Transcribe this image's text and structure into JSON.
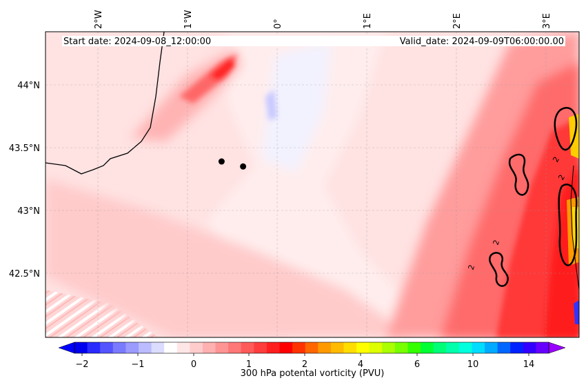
{
  "map": {
    "start_date": "Start date: 2024-09-08_12:00:00",
    "valid_date": "Valid_date: 2024-09-09T06:00:00.00",
    "longitude_labels": [
      "2°W",
      "1°W",
      "0°",
      "1°E",
      "2°E",
      "3°E"
    ],
    "latitude_labels": [
      "44°N",
      "43.5°N",
      "43°N",
      "42.5°N"
    ],
    "gridlines": true,
    "contour_label": "2",
    "markers": [
      {
        "name": "point-1",
        "lon": -0.62,
        "lat": 43.39
      },
      {
        "name": "point-2",
        "lon": -0.38,
        "lat": 43.35
      }
    ]
  },
  "colorbar": {
    "label": "300 hPa potental vorticity (PVU)",
    "tick_labels": [
      "−2",
      "−1",
      "0",
      "1",
      "2",
      "4",
      "6",
      "10",
      "14"
    ],
    "colors": [
      "#0000ee",
      "#2a2aff",
      "#5555ff",
      "#7a7aff",
      "#9a9aff",
      "#bbbbff",
      "#dcdcff",
      "#ffffff",
      "#ffe6e6",
      "#ffcccc",
      "#ffb0b0",
      "#ff9494",
      "#ff7777",
      "#ff5a5a",
      "#ff3c3c",
      "#ff1e1e",
      "#ff0000",
      "#ff3300",
      "#ff6600",
      "#ff9900",
      "#ffbb00",
      "#ffdd00",
      "#ffff00",
      "#ddff00",
      "#aaff00",
      "#77ff00",
      "#33ff00",
      "#00ff33",
      "#00ff77",
      "#00ffaa",
      "#00ffdd",
      "#00ddff",
      "#00aaff",
      "#0066ff",
      "#0022ff",
      "#3300ff",
      "#6600ff"
    ],
    "extend_max_color": "#9900ff",
    "extend_min_color": "#0000ff"
  }
}
